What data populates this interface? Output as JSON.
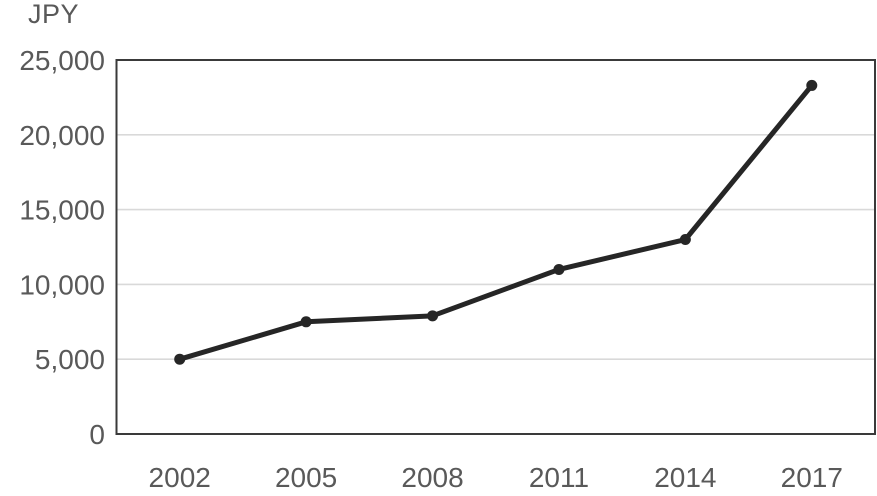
{
  "chart_data": {
    "type": "line",
    "title": "",
    "xlabel": "",
    "ylabel": "JPY",
    "categories": [
      "2002",
      "2005",
      "2008",
      "2011",
      "2014",
      "2017"
    ],
    "series": [
      {
        "name": "JPY",
        "values": [
          5000,
          7500,
          7900,
          11000,
          13000,
          23300
        ]
      }
    ],
    "ylim": [
      0,
      25000
    ],
    "yticks": [
      0,
      5000,
      10000,
      15000,
      20000,
      25000
    ],
    "ytick_labels": [
      "0",
      "5,000",
      "10,000",
      "15,000",
      "20,000",
      "25,000"
    ],
    "grid": true,
    "legend_position": "none",
    "marker": "circle",
    "colors": {
      "line": "#262626",
      "marker": "#262626",
      "grid": "#d9d9d9",
      "border": "#3a3a3a",
      "text": "#595959",
      "background": "#ffffff"
    }
  }
}
